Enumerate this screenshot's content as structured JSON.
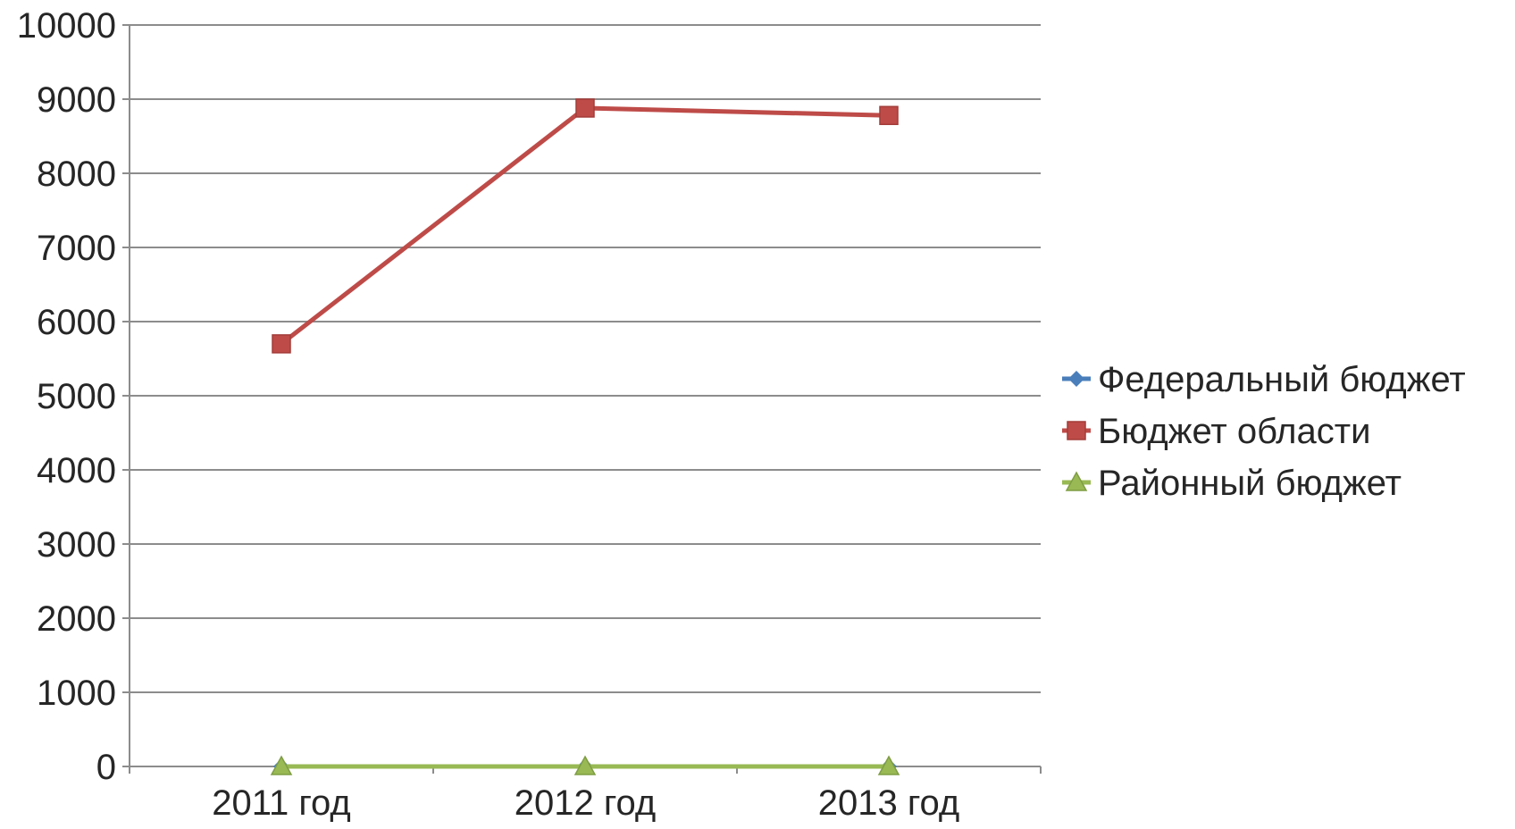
{
  "chart_data": {
    "type": "line",
    "title": "",
    "xlabel": "",
    "ylabel": "",
    "categories": [
      "2011 год",
      "2012 год",
      "2013 год"
    ],
    "y_ticks": [
      "0",
      "1000",
      "2000",
      "3000",
      "4000",
      "5000",
      "6000",
      "7000",
      "8000",
      "9000",
      "10000"
    ],
    "ylim": [
      0,
      10000
    ],
    "grid": true,
    "legend_position": "right",
    "series": [
      {
        "name": "Федеральный бюджет",
        "values": [
          0,
          0,
          0
        ],
        "color": "#4a7ebb",
        "marker": "diamond"
      },
      {
        "name": "Бюджет области",
        "values": [
          5700,
          8880,
          8780
        ],
        "color": "#be4b48",
        "marker": "square"
      },
      {
        "name": "Районный бюджет",
        "values": [
          0,
          0,
          0
        ],
        "color": "#98b954",
        "marker": "triangle"
      }
    ]
  }
}
